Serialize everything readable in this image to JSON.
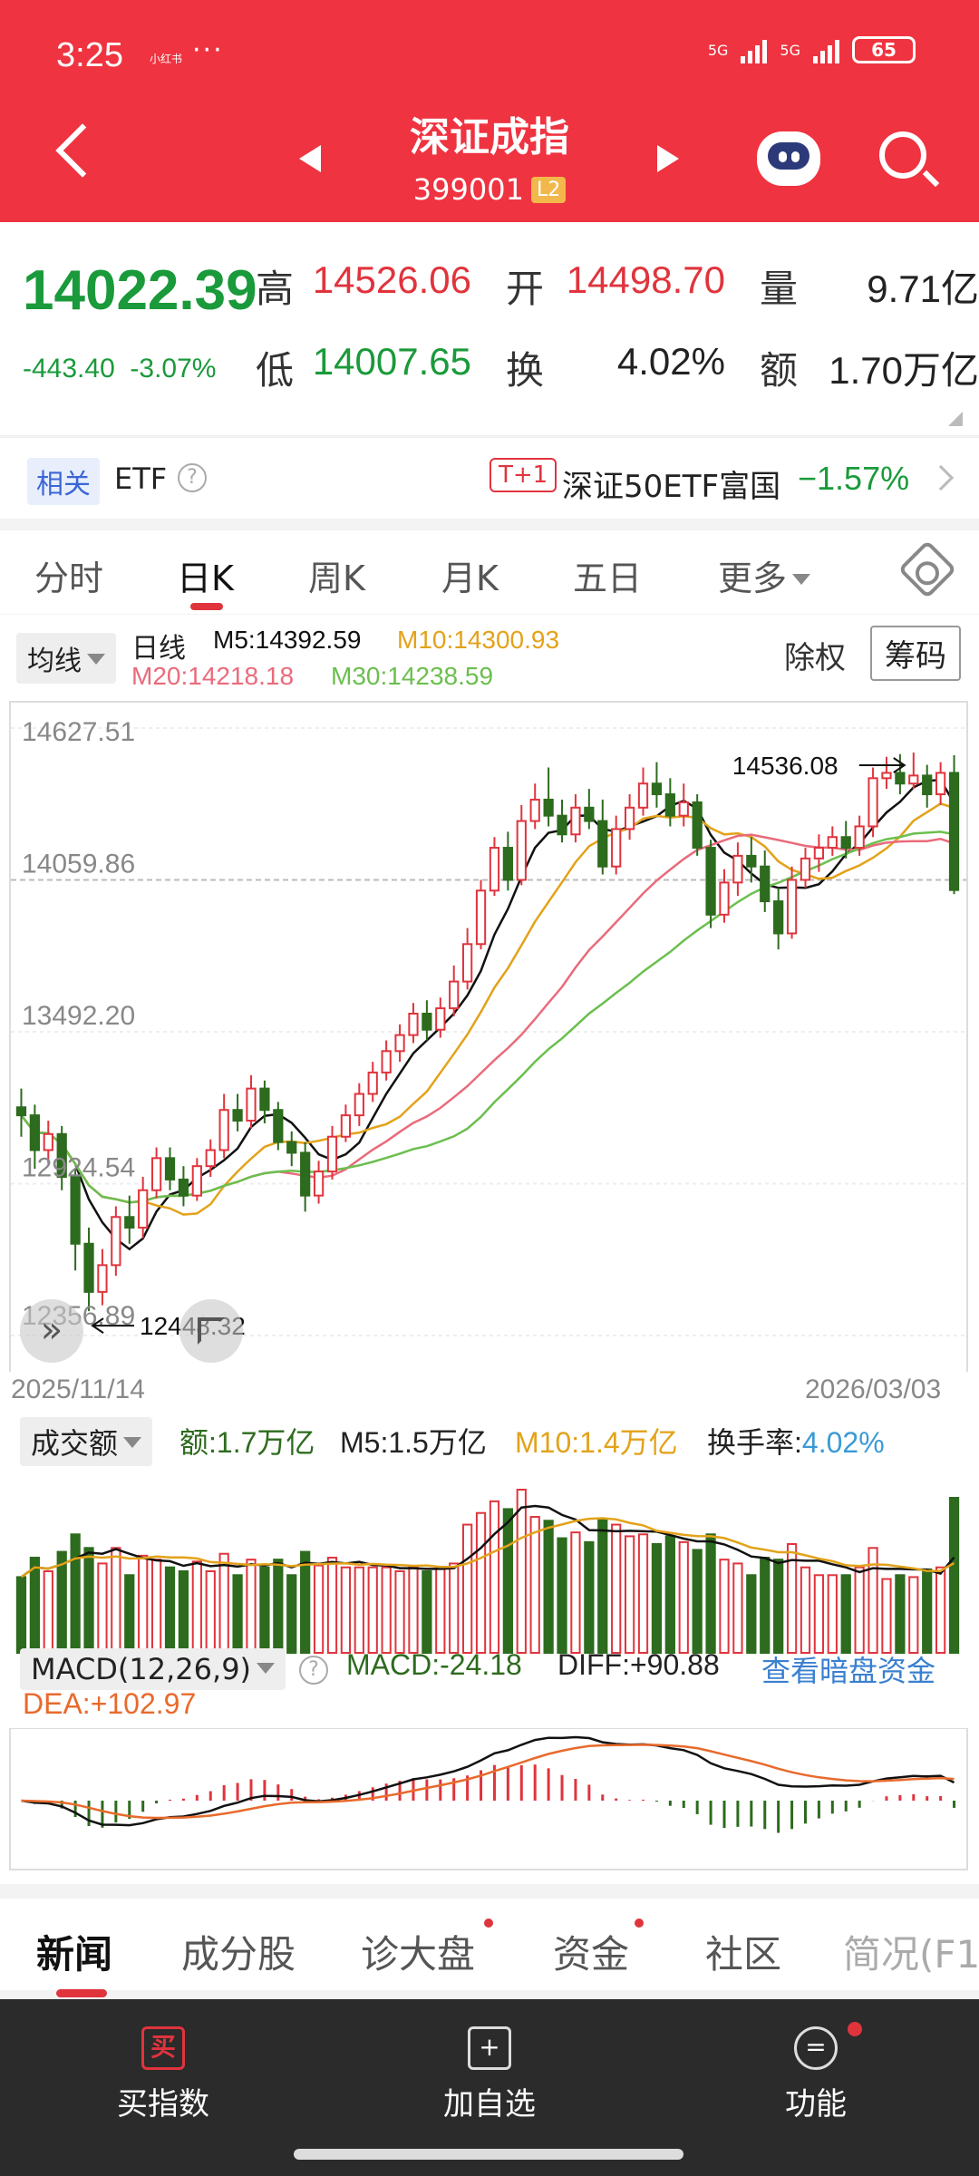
{
  "status": {
    "time": "3:25",
    "carrier": "小红书",
    "dots": "···",
    "net1": "5G",
    "net2": "5G",
    "battery": "65"
  },
  "header": {
    "title": "深证成指",
    "code": "399001",
    "level": "L2"
  },
  "quote": {
    "price": "14022.39",
    "change": "-443.40",
    "pct": "-3.07%",
    "labels": {
      "high": "高",
      "open": "开",
      "vol": "量",
      "low": "低",
      "turnover": "换",
      "amount": "额"
    },
    "high": "14526.06",
    "open": "14498.70",
    "volume": "9.71亿",
    "low": "14007.65",
    "turnover": "4.02%",
    "amount": "1.70万亿"
  },
  "etf": {
    "tag": "相关",
    "label": "ETF",
    "help": "?",
    "t1": "T+1",
    "name": "深证50ETF富国",
    "pct": "−1.57%"
  },
  "tabs": [
    "分时",
    "日K",
    "周K",
    "月K",
    "五日",
    "更多"
  ],
  "ma": {
    "btn": "均线",
    "period": "日线",
    "m5": "M5:14392.59",
    "m10": "M10:14300.93",
    "m20": "M20:14218.18",
    "m30": "M30:14238.59",
    "chuquan": "除权",
    "chouma": "筹码"
  },
  "colors": {
    "up": "#e0343d",
    "down": "#2d6b1e",
    "m5": "#111111",
    "m10": "#e3a21a",
    "m20": "#e96b7b",
    "m30": "#6bbf4e",
    "accent": "#ef3340"
  },
  "kline": {
    "y_labels": [
      "14627.51",
      "14059.86",
      "13492.20",
      "12924.54",
      "12356.89"
    ],
    "y_values": [
      14627.51,
      14059.86,
      13492.2,
      12924.54,
      12356.89
    ],
    "high_mark": "14536.08",
    "low_mark": "12448.32",
    "date_start": "2025/11/14",
    "date_end": "2026/03/03"
  },
  "volume": {
    "btn": "成交额",
    "amount": "额:1.7万亿",
    "m5": "M5:1.5万亿",
    "m10": "M10:1.4万亿",
    "turnover_label": "换手率:",
    "turnover": "4.02%"
  },
  "macd": {
    "btn": "MACD(12,26,9)",
    "macd": "MACD:-24.18",
    "diff": "DIFF:+90.88",
    "dea": "DEA:+102.97",
    "link": "查看暗盘资金"
  },
  "news_tabs": [
    "新闻",
    "成分股",
    "诊大盘",
    "资金",
    "社区",
    "简况(F1"
  ],
  "bottom": {
    "buy": "买指数",
    "buy_icon": "买",
    "add": "加自选",
    "add_icon": "+",
    "func": "功能",
    "func_icon": "="
  },
  "chart_data": {
    "type": "candlestick",
    "y_ticks": [
      14627.51,
      14059.86,
      13492.2,
      12924.54,
      12356.89
    ],
    "x_range": [
      "2025/11/14",
      "2026/03/03"
    ],
    "annotations": [
      {
        "label": "14536.08"
      },
      {
        "label": "12448.32"
      }
    ],
    "candles": [
      [
        13210,
        13180,
        13280,
        13100
      ],
      [
        13180,
        13050,
        13220,
        12980
      ],
      [
        13050,
        13110,
        13160,
        13000
      ],
      [
        13110,
        12950,
        13140,
        12900
      ],
      [
        12950,
        12700,
        12980,
        12600
      ],
      [
        12700,
        12520,
        12760,
        12448
      ],
      [
        12520,
        12620,
        12680,
        12470
      ],
      [
        12620,
        12800,
        12840,
        12580
      ],
      [
        12800,
        12760,
        12880,
        12700
      ],
      [
        12760,
        12900,
        12950,
        12720
      ],
      [
        12900,
        13020,
        13060,
        12870
      ],
      [
        13020,
        12940,
        13060,
        12900
      ],
      [
        12940,
        12880,
        12990,
        12840
      ],
      [
        12880,
        12990,
        13020,
        12860
      ],
      [
        12990,
        13050,
        13090,
        12950
      ],
      [
        13050,
        13200,
        13260,
        13020
      ],
      [
        13200,
        13160,
        13260,
        13120
      ],
      [
        13160,
        13280,
        13330,
        13130
      ],
      [
        13280,
        13200,
        13310,
        13150
      ],
      [
        13200,
        13080,
        13230,
        13050
      ],
      [
        13080,
        13040,
        13120,
        12990
      ],
      [
        13040,
        12880,
        13080,
        12820
      ],
      [
        12880,
        12970,
        13010,
        12850
      ],
      [
        12970,
        13100,
        13140,
        12940
      ],
      [
        13100,
        13180,
        13220,
        13080
      ],
      [
        13180,
        13260,
        13300,
        13140
      ],
      [
        13260,
        13340,
        13380,
        13230
      ],
      [
        13340,
        13420,
        13460,
        13310
      ],
      [
        13420,
        13480,
        13520,
        13380
      ],
      [
        13480,
        13560,
        13600,
        13450
      ],
      [
        13560,
        13500,
        13610,
        13460
      ],
      [
        13500,
        13580,
        13620,
        13470
      ],
      [
        13580,
        13680,
        13740,
        13550
      ],
      [
        13680,
        13820,
        13880,
        13650
      ],
      [
        13820,
        14020,
        14060,
        13800
      ],
      [
        14020,
        14180,
        14220,
        14000
      ],
      [
        14180,
        14060,
        14240,
        14020
      ],
      [
        14060,
        14280,
        14340,
        14040
      ],
      [
        14280,
        14360,
        14420,
        14250
      ],
      [
        14360,
        14300,
        14480,
        14260
      ],
      [
        14300,
        14230,
        14360,
        14200
      ],
      [
        14230,
        14330,
        14380,
        14200
      ],
      [
        14330,
        14280,
        14400,
        14250
      ],
      [
        14280,
        14110,
        14360,
        14080
      ],
      [
        14110,
        14250,
        14300,
        14080
      ],
      [
        14250,
        14330,
        14380,
        14210
      ],
      [
        14330,
        14420,
        14480,
        14300
      ],
      [
        14420,
        14380,
        14500,
        14330
      ],
      [
        14380,
        14300,
        14440,
        14260
      ],
      [
        14300,
        14350,
        14420,
        14260
      ],
      [
        14350,
        14180,
        14380,
        14150
      ],
      [
        14180,
        13930,
        14210,
        13880
      ],
      [
        13930,
        14050,
        14100,
        13900
      ],
      [
        14050,
        14150,
        14200,
        14000
      ],
      [
        14150,
        14110,
        14220,
        14050
      ],
      [
        14110,
        13980,
        14170,
        13940
      ],
      [
        13980,
        13860,
        14030,
        13800
      ],
      [
        13860,
        14060,
        14110,
        13840
      ],
      [
        14060,
        14140,
        14180,
        14030
      ],
      [
        14140,
        14180,
        14230,
        14090
      ],
      [
        14180,
        14220,
        14260,
        14150
      ],
      [
        14220,
        14180,
        14280,
        14140
      ],
      [
        14180,
        14260,
        14300,
        14150
      ],
      [
        14260,
        14440,
        14480,
        14220
      ],
      [
        14440,
        14460,
        14520,
        14400
      ],
      [
        14460,
        14420,
        14530,
        14380
      ],
      [
        14420,
        14450,
        14536,
        14400
      ],
      [
        14450,
        14380,
        14490,
        14330
      ],
      [
        14380,
        14460,
        14500,
        14340
      ],
      [
        14460,
        14022,
        14526,
        14007
      ]
    ]
  }
}
